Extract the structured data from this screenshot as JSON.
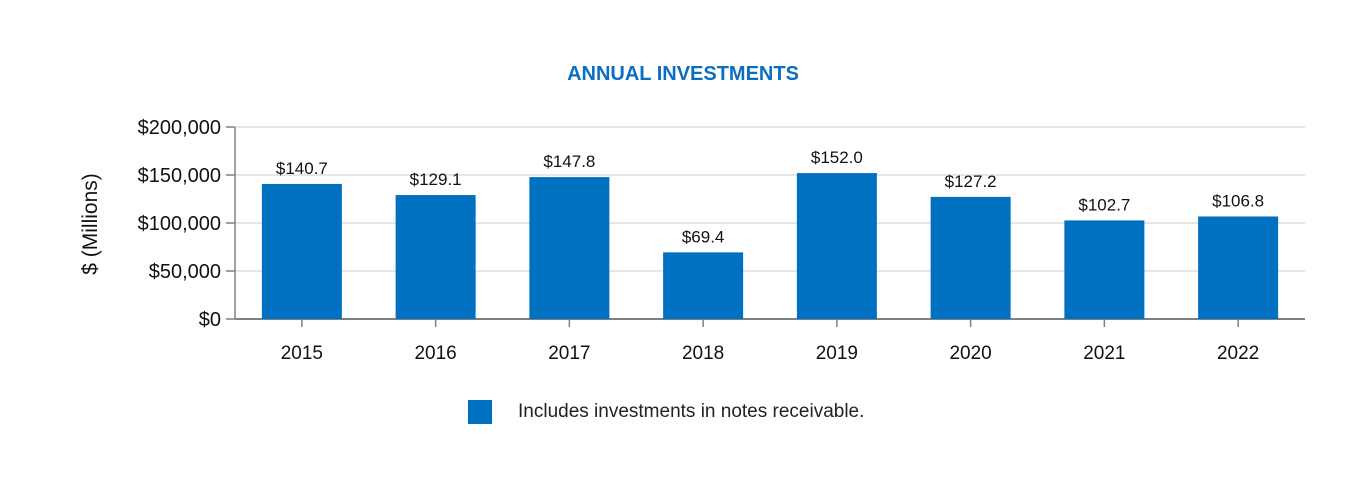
{
  "chart_data": {
    "type": "bar",
    "title": "ANNUAL INVESTMENTS",
    "xlabel": "",
    "ylabel": "$ (Millions)",
    "categories": [
      "2015",
      "2016",
      "2017",
      "2018",
      "2019",
      "2020",
      "2021",
      "2022"
    ],
    "values": [
      140700,
      129100,
      147800,
      69400,
      152000,
      127200,
      102700,
      106800
    ],
    "data_labels": [
      "$140.7",
      "$129.1",
      "$147.8",
      "$69.4",
      "$152.0",
      "$127.2",
      "$102.7",
      "$106.8"
    ],
    "ylim": [
      0,
      200000
    ],
    "yticks": [
      0,
      50000,
      100000,
      150000,
      200000
    ],
    "ytick_labels": [
      "$0",
      "$50,000",
      "$100,000",
      "$150,000",
      "$200,000"
    ],
    "grid": true,
    "legend": {
      "label": "Includes investments in notes receivable.",
      "placement": "bottom"
    },
    "colors": {
      "bar": "#0070c0",
      "title": "#0a6fc2",
      "grid": "#e6e6e6",
      "axis": "#808080"
    }
  }
}
